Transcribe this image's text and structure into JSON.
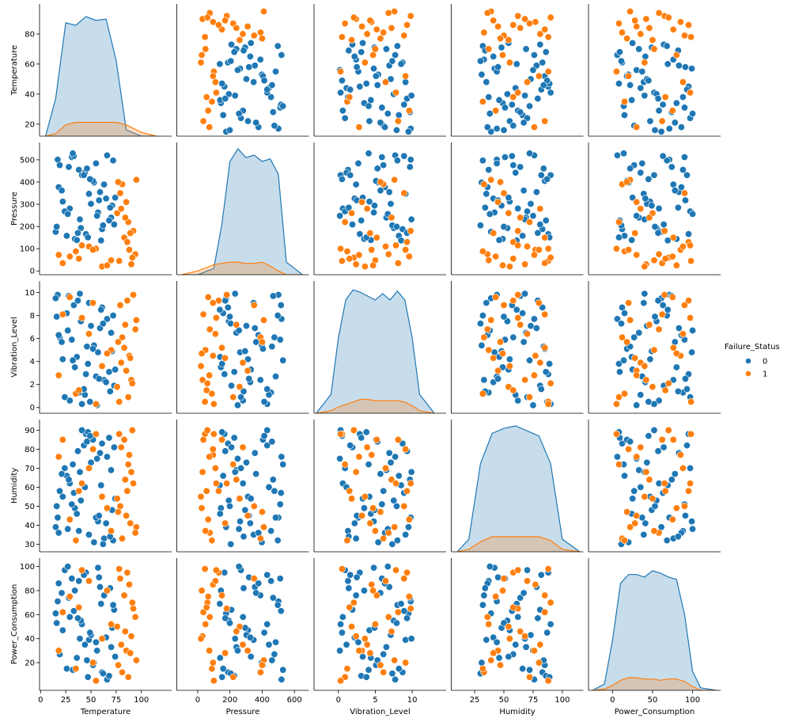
{
  "chart_data": {
    "type": "pairplot",
    "legend_title": "Failure_Status",
    "legend": "right",
    "diag_ylim": [
      0,
      1.05
    ],
    "variables": [
      {
        "name": "Temperature",
        "xlim": [
          -1,
          130
        ],
        "xticks": [
          0,
          25,
          50,
          75,
          100
        ],
        "ylim": [
          12,
          100
        ],
        "yticks": [
          20,
          40,
          60,
          80
        ],
        "kde_x": [
          5,
          15,
          25,
          35,
          45,
          55,
          65,
          75,
          85,
          100,
          115
        ]
      },
      {
        "name": "Pressure",
        "xlim": [
          -130,
          690
        ],
        "xticks": [
          0,
          200,
          400,
          600
        ],
        "ylim": [
          -17,
          578
        ],
        "yticks": [
          0,
          100,
          200,
          300,
          400,
          500
        ],
        "kde_x": [
          -100,
          0,
          100,
          150,
          200,
          250,
          300,
          350,
          400,
          450,
          500,
          550,
          650
        ]
      },
      {
        "name": "Vibration_Level",
        "xlim": [
          -3.3,
          14.6
        ],
        "xticks": [
          0,
          5,
          10
        ],
        "ylim": [
          -0.5,
          11
        ],
        "yticks": [
          0,
          2,
          4,
          6,
          8,
          10
        ],
        "kde_x": [
          -3,
          -1,
          0,
          1,
          2,
          3,
          4,
          5,
          6,
          7,
          8,
          9,
          10,
          11,
          13
        ]
      },
      {
        "name": "Humidity",
        "xlim": [
          5,
          118
        ],
        "xticks": [
          25,
          50,
          75,
          100
        ],
        "ylim": [
          26,
          95.6
        ],
        "yticks": [
          30,
          40,
          50,
          60,
          70,
          80,
          90
        ],
        "kde_x": [
          10,
          20,
          30,
          40,
          50,
          60,
          70,
          80,
          90,
          100,
          115
        ]
      },
      {
        "name": "Power_Consumption",
        "xlim": [
          -30,
          135
        ],
        "xticks": [
          0,
          50,
          100
        ],
        "ylim": [
          -3,
          107
        ],
        "yticks": [
          20,
          40,
          60,
          80,
          100
        ],
        "kde_x": [
          -25,
          -10,
          0,
          10,
          20,
          30,
          40,
          50,
          60,
          70,
          80,
          90,
          100,
          110,
          130
        ]
      }
    ],
    "series": [
      {
        "name": "0",
        "color": "#1f77b4",
        "columns": [
          [
            22,
            61,
            38,
            70,
            17,
            45,
            53,
            29,
            66,
            34,
            48,
            73,
            19,
            57,
            41,
            26,
            63,
            50,
            31,
            68,
            15,
            44,
            59,
            36,
            72,
            24,
            52,
            40,
            65,
            28,
            47,
            18,
            56,
            33,
            71,
            43,
            62,
            21,
            55,
            37,
            74,
            27,
            49,
            60,
            32,
            69,
            16,
            46,
            58,
            39
          ],
          [
            312,
            188,
            455,
            240,
            501,
            166,
            398,
            281,
            520,
            144,
            347,
            209,
            476,
            263,
            431,
            158,
            389,
            302,
            512,
            227,
            176,
            442,
            355,
            139,
            497,
            268,
            405,
            193,
            326,
            468,
            151,
            377,
            248,
            517,
            294,
            431,
            205,
            362,
            484,
            171,
            330,
            256,
            413,
            137,
            529,
            285,
            199,
            461,
            318,
            232
          ],
          [
            4.2,
            8.7,
            1.3,
            6.5,
            9.8,
            2.9,
            5.4,
            0.6,
            7.7,
            3.5,
            9.1,
            1.9,
            6.1,
            4.8,
            0.3,
            8.2,
            2.4,
            7.1,
            5.9,
            3.1,
            9.5,
            1.1,
            6.9,
            4.4,
            8.0,
            0.9,
            5.1,
            7.5,
            2.2,
            9.7,
            3.8,
            6.3,
            0.2,
            8.9,
            4.9,
            1.6,
            7.3,
            5.7,
            2.7,
            9.3,
            3.3,
            6.7,
            0.5,
            8.5,
            4.1,
            1.4,
            7.9,
            5.3,
            2.5,
            9.9
          ],
          [
            55,
            83,
            37,
            69,
            44,
            88,
            31,
            62,
            76,
            49,
            35,
            81,
            58,
            42,
            90,
            66,
            33,
            73,
            51,
            86,
            39,
            60,
            78,
            46,
            32,
            70,
            85,
            53,
            41,
            64,
            89,
            36,
            75,
            57,
            48,
            82,
            30,
            67,
            44,
            79,
            54,
            38,
            87,
            61,
            72,
            34,
            50,
            84,
            45,
            68
          ],
          [
            47,
            12,
            88,
            33,
            71,
            95,
            20,
            58,
            6,
            80,
            39,
            64,
            27,
            99,
            52,
            15,
            76,
            43,
            90,
            9,
            61,
            35,
            83,
            24,
            68,
            97,
            18,
            55,
            41,
            74,
            8,
            86,
            30,
            63,
            49,
            93,
            11,
            78,
            37,
            57,
            25,
            100,
            45,
            69,
            14,
            82,
            53,
            22,
            91,
            40
          ]
        ],
        "kde": [
          [
            0,
            0.3,
            0.9,
            0.88,
            0.95,
            0.92,
            0.93,
            0.6,
            0.05,
            0,
            0
          ],
          [
            0,
            0,
            0.05,
            0.4,
            0.9,
            1,
            0.93,
            0.95,
            0.9,
            0.92,
            0.8,
            0.1,
            0
          ],
          [
            0,
            0.15,
            0.6,
            0.9,
            0.98,
            0.96,
            0.93,
            0.9,
            0.95,
            0.9,
            0.97,
            0.9,
            0.6,
            0.15,
            0
          ],
          [
            0,
            0.1,
            0.7,
            0.94,
            0.98,
            1,
            0.96,
            0.92,
            0.7,
            0.1,
            0
          ],
          [
            0,
            0.05,
            0.4,
            0.85,
            0.92,
            0.92,
            0.9,
            0.95,
            0.93,
            0.9,
            0.88,
            0.6,
            0.15,
            0.02,
            0
          ]
        ]
      },
      {
        "name": "1",
        "color": "#ff7f0e",
        "columns": [
          [
            78,
            85,
            92,
            81,
            88,
            76,
            95,
            83,
            90,
            79,
            87,
            94,
            80,
            86,
            77,
            91,
            84,
            89,
            22,
            35,
            48,
            61,
            29,
            55,
            70,
            41,
            18,
            66,
            52,
            38
          ],
          [
            45,
            310,
            180,
            390,
            95,
            260,
            410,
            150,
            30,
            350,
            220,
            75,
            280,
            130,
            400,
            60,
            240,
            170,
            35,
            88,
            110,
            20,
            65,
            100,
            48,
            115,
            72,
            25,
            95,
            55
          ],
          [
            0.5,
            3.2,
            9.8,
            6.1,
            4.5,
            1.8,
            7.6,
            5.2,
            2.4,
            8.9,
            0.9,
            6.8,
            3.9,
            9.3,
            5.7,
            2.1,
            7.2,
            4.3,
            8.1,
            1.2,
            6.4,
            3.6,
            9.6,
            0.3,
            5.0,
            7.8,
            2.8,
            4.7,
            9.1,
            1.5
          ],
          [
            88,
            45,
            62,
            33,
            77,
            54,
            39,
            85,
            68,
            50,
            72,
            36,
            81,
            58,
            47,
            90,
            64,
            41,
            85,
            32,
            70,
            55,
            43,
            88,
            37,
            62,
            76,
            49,
            80,
            58
          ],
          [
            98,
            30,
            65,
            12,
            85,
            50,
            22,
            76,
            42,
            90,
            8,
            58,
            35,
            95,
            18,
            70,
            46,
            28,
            62,
            15,
            88,
            40,
            75,
            5,
            52,
            97,
            30,
            80,
            20,
            66
          ]
        ],
        "kde": [
          [
            0,
            0.02,
            0.09,
            0.11,
            0.11,
            0.11,
            0.11,
            0.11,
            0.09,
            0.03,
            0
          ],
          [
            0,
            0.03,
            0.08,
            0.09,
            0.1,
            0.1,
            0.09,
            0.09,
            0.1,
            0.07,
            0.03,
            0,
            0
          ],
          [
            0,
            0.02,
            0.05,
            0.07,
            0.09,
            0.11,
            0.11,
            0.1,
            0.1,
            0.1,
            0.1,
            0.09,
            0.06,
            0.02,
            0
          ],
          [
            0,
            0.02,
            0.08,
            0.12,
            0.12,
            0.12,
            0.12,
            0.12,
            0.09,
            0.02,
            0
          ],
          [
            0,
            0.01,
            0.04,
            0.08,
            0.1,
            0.1,
            0.09,
            0.09,
            0.08,
            0.09,
            0.09,
            0.07,
            0.03,
            0,
            0
          ]
        ]
      }
    ]
  }
}
